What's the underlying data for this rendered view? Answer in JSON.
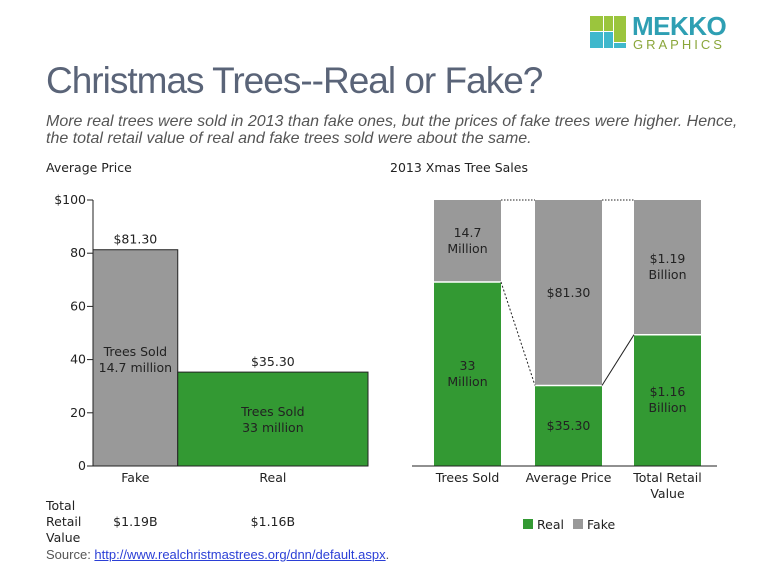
{
  "logo": {
    "line1": "MEKKO",
    "line2": "GRAPHICS",
    "colors": [
      "#9bc53d",
      "#3fb8cc"
    ]
  },
  "title": "Christmas Trees--Real or Fake?",
  "subtitle": "More real trees were sold in 2013 than fake ones, but the prices of fake trees were higher.  Hence, the total retail value of real and fake trees sold were about the same.",
  "source": {
    "prefix": "Source: ",
    "link": "http://www.realchristmastrees.org/dnn/default.aspx",
    "suffix": "."
  },
  "colors": {
    "real": "#339933",
    "fake": "#999999"
  },
  "chart_data": [
    {
      "type": "bar",
      "subtype": "variable-width",
      "title": "Average Price",
      "ylim": [
        0,
        100
      ],
      "yticks": [
        "0",
        "20",
        "40",
        "60",
        "80",
        "$100"
      ],
      "yticks_values": [
        0,
        20,
        40,
        60,
        80,
        100
      ],
      "categories": [
        "Fake",
        "Real"
      ],
      "values": [
        81.3,
        35.3
      ],
      "widths": [
        14.7,
        33
      ],
      "value_labels": [
        "$81.30",
        "$35.30"
      ],
      "inner_labels": [
        [
          "Trees Sold",
          "14.7 million"
        ],
        [
          "Trees Sold",
          "33 million"
        ]
      ],
      "footer": {
        "label": [
          "Total",
          "Retail",
          "Value"
        ],
        "values": [
          "$1.19B",
          "$1.16B"
        ]
      }
    },
    {
      "type": "bar",
      "subtype": "100%-stacked",
      "title": "2013 Xmas Tree Sales",
      "categories": [
        [
          "Trees Sold"
        ],
        [
          "Average Price"
        ],
        [
          "Total Retail",
          "Value"
        ]
      ],
      "series": [
        {
          "name": "Real",
          "values": [
            33,
            35.3,
            1.16
          ],
          "labels": [
            [
              "33",
              "Million"
            ],
            [
              "$35.30"
            ],
            [
              "$1.16",
              "Billion"
            ]
          ]
        },
        {
          "name": "Fake",
          "values": [
            14.7,
            81.3,
            1.19
          ],
          "labels": [
            [
              "14.7",
              "Million"
            ],
            [
              "$81.30"
            ],
            [
              "$1.19",
              "Billion"
            ]
          ]
        }
      ],
      "legend": "bottom"
    }
  ]
}
